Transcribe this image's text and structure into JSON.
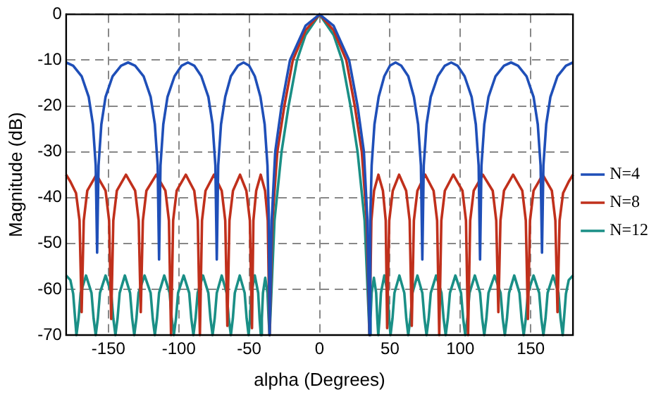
{
  "chart_data": {
    "type": "line",
    "xlabel": "alpha (Degrees)",
    "ylabel": "Magnitude (dB)",
    "xlim": [
      -180,
      180
    ],
    "xticks": [
      -150,
      -100,
      -50,
      0,
      50,
      100,
      150
    ],
    "ylim": [
      -70,
      0
    ],
    "yticks": [
      -70,
      -60,
      -50,
      -40,
      -30,
      -20,
      -10,
      0
    ],
    "grid": true,
    "legend": "right",
    "marker": "none",
    "line_style": "solid",
    "series": [
      {
        "name": "N=4",
        "color": "#1f4fb8",
        "x": [
          -180,
          -175,
          -169,
          -164,
          -161,
          -159,
          -158,
          -157,
          -155,
          -152,
          -147,
          -141,
          -136,
          -131,
          -125,
          -120,
          -117,
          -115,
          -114,
          -113,
          -111,
          -108,
          -103,
          -98,
          -93.5,
          -89,
          -84,
          -79,
          -76,
          -74,
          -73,
          -72,
          -70,
          -67,
          -63,
          -58,
          -54,
          -50,
          -46,
          -42,
          -39,
          -37,
          -36,
          -35.5,
          -34,
          -31.5,
          -27,
          -21,
          -10,
          0,
          10,
          21,
          27,
          31.5,
          34,
          35.5,
          36,
          37,
          39,
          42,
          46,
          50,
          54,
          58,
          63,
          67,
          70,
          72,
          73,
          74,
          76,
          79,
          84,
          89,
          93.5,
          98,
          103,
          108,
          111,
          113,
          114,
          115,
          117,
          120,
          125,
          131,
          136,
          141,
          147,
          152,
          155,
          157,
          158,
          159,
          161,
          164,
          169,
          175,
          180
        ],
        "values": [
          -10.5,
          -11.2,
          -13.5,
          -18,
          -24,
          -33,
          -52,
          -33,
          -24,
          -18,
          -13.5,
          -11.2,
          -10.5,
          -11.2,
          -13.5,
          -18,
          -24,
          -33,
          -53.5,
          -33,
          -24,
          -18,
          -13.5,
          -11.2,
          -10.5,
          -11.2,
          -13.5,
          -18,
          -24,
          -33,
          -53.5,
          -33,
          -24,
          -18,
          -13.5,
          -11.2,
          -10.5,
          -11.2,
          -13.5,
          -18,
          -24,
          -33,
          -45,
          -70,
          -45,
          -30,
          -20,
          -10,
          -2.5,
          0,
          -2.5,
          -10,
          -20,
          -30,
          -45,
          -70,
          -45,
          -33,
          -24,
          -18,
          -13.5,
          -11.2,
          -10.5,
          -11.2,
          -13.5,
          -18,
          -24,
          -33,
          -53.5,
          -33,
          -24,
          -18,
          -13.5,
          -11.2,
          -10.5,
          -11.2,
          -13.5,
          -18,
          -24,
          -33,
          -53.5,
          -33,
          -24,
          -18,
          -13.5,
          -11.2,
          -10.5,
          -11.2,
          -13.5,
          -18,
          -24,
          -33,
          -52,
          -33,
          -24,
          -18,
          -13.5,
          -11.2,
          -10.5
        ]
      },
      {
        "name": "N=8",
        "color": "#c0301c",
        "x": [
          -180,
          -177,
          -173,
          -170.5,
          -169,
          -167.5,
          -165,
          -158.5,
          -152,
          -149.5,
          -148,
          -146.5,
          -144,
          -137.5,
          -131,
          -128.5,
          -127,
          -125.5,
          -123,
          -116,
          -109.5,
          -107,
          -105.5,
          -104,
          -101.5,
          -95,
          -89,
          -86.5,
          -85,
          -83.5,
          -81,
          -75,
          -69.5,
          -67,
          -65.5,
          -64,
          -61.5,
          -56.5,
          -52,
          -49.5,
          -48,
          -47,
          -45,
          -41.8,
          -38.7,
          -36.8,
          -35.5,
          -33.5,
          -30,
          -25,
          -19,
          -10,
          0,
          10,
          19,
          25,
          30,
          33.5,
          35.5,
          36.8,
          38.7,
          41.8,
          45,
          47,
          48,
          49.5,
          52,
          56.5,
          61.5,
          64,
          65.5,
          67,
          69.5,
          75,
          81,
          83.5,
          85,
          86.5,
          89,
          95,
          101.5,
          104,
          105.5,
          107,
          109.5,
          116,
          123,
          125.5,
          127,
          128.5,
          131,
          137.5,
          144,
          146.5,
          148,
          149.5,
          152,
          158.5,
          165,
          167.5,
          169,
          170.5,
          173,
          177,
          180
        ],
        "values": [
          -35,
          -36.5,
          -39,
          -45,
          -65,
          -45,
          -38.5,
          -35,
          -38.5,
          -45,
          -66.5,
          -45,
          -38.5,
          -35,
          -38.5,
          -45,
          -65,
          -45,
          -38.5,
          -35,
          -38.5,
          -45,
          -70,
          -45,
          -38.5,
          -35,
          -38.5,
          -45,
          -70,
          -45,
          -38.5,
          -35,
          -38.5,
          -45,
          -68,
          -45,
          -38.5,
          -35,
          -38.5,
          -45,
          -68.5,
          -45,
          -38.5,
          -35,
          -38.5,
          -45,
          -70,
          -45,
          -30,
          -20,
          -10,
          -3.5,
          0,
          -3.5,
          -10,
          -20,
          -30,
          -45,
          -70,
          -45,
          -38.5,
          -35,
          -38.5,
          -45,
          -68.5,
          -45,
          -38.5,
          -35,
          -38.5,
          -45,
          -68,
          -45,
          -38.5,
          -35,
          -38.5,
          -45,
          -70,
          -45,
          -38.5,
          -35,
          -38.5,
          -45,
          -70,
          -45,
          -38.5,
          -35,
          -38.5,
          -45,
          -65,
          -45,
          -38.5,
          -35,
          -38.5,
          -45,
          -66.5,
          -45,
          -38.5,
          -35,
          -38.5,
          -45,
          -65,
          -45,
          -39,
          -36.5,
          -35
        ]
      },
      {
        "name": "N=12",
        "color": "#1a8f86",
        "x": [
          -180,
          -177,
          -175,
          -174,
          -172.7,
          -171.2,
          -169.7,
          -165.9,
          -162,
          -160.5,
          -159,
          -157.5,
          -156,
          -152,
          -148,
          -146.5,
          -145,
          -143.5,
          -142,
          -138.3,
          -134.6,
          -133.1,
          -131.6,
          -130.1,
          -128.6,
          -124.3,
          -120,
          -118.5,
          -117,
          -115.5,
          -114,
          -110.3,
          -106.5,
          -105,
          -103.5,
          -102,
          -100.5,
          -96.5,
          -92.6,
          -91.1,
          -89.6,
          -88.1,
          -86.6,
          -82.8,
          -79,
          -77.5,
          -76,
          -74.5,
          -73,
          -69.5,
          -66,
          -64.5,
          -63,
          -61.6,
          -60.2,
          -56.7,
          -53.2,
          -51.8,
          -50.4,
          -49.4,
          -48.4,
          -46,
          -43.6,
          -42.6,
          -41.7,
          -41,
          -40.2,
          -38.6,
          -37,
          -36.2,
          -35.5,
          -32,
          -27,
          -22,
          -16,
          -10,
          0,
          10,
          16,
          22,
          27,
          32,
          35.5,
          36.2,
          37,
          38.6,
          40.2,
          41,
          41.7,
          42.6,
          43.6,
          46,
          48.4,
          49.4,
          50.4,
          51.8,
          53.2,
          56.7,
          60.2,
          61.6,
          63,
          64.5,
          66,
          69.5,
          73,
          74.5,
          76,
          77.5,
          79,
          82.8,
          86.6,
          88.1,
          89.6,
          91.1,
          92.6,
          96.5,
          100.5,
          102,
          103.5,
          105,
          106.5,
          110.3,
          114,
          115.5,
          117,
          118.5,
          120,
          124.3,
          128.6,
          130.1,
          131.6,
          133.1,
          134.6,
          138.3,
          142,
          143.5,
          145,
          146.5,
          148,
          152,
          156,
          157.5,
          159,
          160.5,
          162,
          165.9,
          169.7,
          171.2,
          172.7,
          174,
          175,
          177,
          180
        ],
        "values": [
          -57,
          -58,
          -61,
          -65,
          -70,
          -66.4,
          -60.8,
          -57,
          -60.8,
          -66.4,
          -70,
          -66.4,
          -60.8,
          -57,
          -60.8,
          -66.4,
          -70,
          -66.4,
          -60.8,
          -57,
          -60.8,
          -66.4,
          -70,
          -66.4,
          -60.8,
          -57,
          -60.8,
          -66.4,
          -70,
          -66.4,
          -60.8,
          -57,
          -60.8,
          -66.4,
          -70,
          -66.4,
          -60.8,
          -57,
          -60.8,
          -66.4,
          -70,
          -66.4,
          -60.8,
          -57,
          -60.8,
          -66.4,
          -70,
          -66.4,
          -60.8,
          -57,
          -60.8,
          -66.4,
          -70,
          -66.4,
          -60.8,
          -57,
          -60.8,
          -66.4,
          -70,
          -66.4,
          -60.8,
          -57,
          -60.8,
          -66.4,
          -70,
          -66.4,
          -60.8,
          -57.5,
          -60.8,
          -66.4,
          -70,
          -45,
          -30,
          -20,
          -10,
          -4.5,
          0,
          -4.5,
          -10,
          -20,
          -30,
          -45,
          -70,
          -66.4,
          -60.8,
          -57.5,
          -60.8,
          -66.4,
          -70,
          -66.4,
          -60.8,
          -57,
          -60.8,
          -66.4,
          -70,
          -66.4,
          -60.8,
          -57,
          -60.8,
          -66.4,
          -70,
          -66.4,
          -60.8,
          -57,
          -60.8,
          -66.4,
          -70,
          -66.4,
          -60.8,
          -57,
          -60.8,
          -66.4,
          -70,
          -66.4,
          -60.8,
          -57,
          -60.8,
          -66.4,
          -70,
          -66.4,
          -60.8,
          -57,
          -60.8,
          -66.4,
          -70,
          -66.4,
          -60.8,
          -57,
          -60.8,
          -66.4,
          -70,
          -66.4,
          -60.8,
          -57,
          -60.8,
          -66.4,
          -70,
          -66.4,
          -60.8,
          -57,
          -60.8,
          -66.4,
          -70,
          -66.4,
          -60.8,
          -57,
          -60.8,
          -66.4,
          -70,
          -65,
          -61,
          -58,
          -57
        ]
      }
    ]
  }
}
